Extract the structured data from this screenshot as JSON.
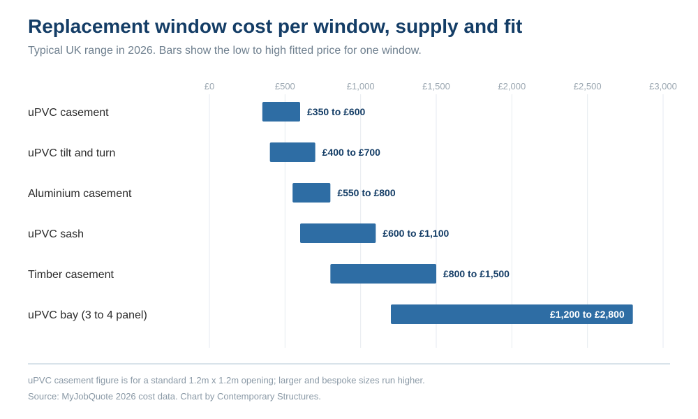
{
  "header": {
    "title": "Replacement window cost per window, supply and fit",
    "subtitle": "Typical UK range in 2026. Bars show the low to high fitted price for one window."
  },
  "footer": {
    "note": "uPVC casement figure is for a standard 1.2m x 1.2m opening; larger and bespoke sizes run higher.",
    "source": "Source: MyJobQuote 2026 cost data. Chart by Contemporary Structures."
  },
  "colors": {
    "bar": "#2e6da4",
    "range_label": "#143d66",
    "range_label_inside": "#ffffff",
    "category_label": "#2b2b2b",
    "tick_label": "#9aa6b0",
    "grid": "#e6eaf0"
  },
  "chart_data": {
    "type": "bar",
    "orientation": "horizontal-range",
    "xlim": [
      0,
      3000
    ],
    "ticks": [
      0,
      500,
      1000,
      1500,
      2000,
      2500,
      3000
    ],
    "tick_labels": [
      "£0",
      "£500",
      "£1,000",
      "£1,500",
      "£2,000",
      "£2,500",
      "£3,000"
    ],
    "tick_position": "top",
    "grid": true,
    "categories": [
      "uPVC casement",
      "uPVC tilt and turn",
      "Aluminium casement",
      "uPVC sash",
      "Timber casement",
      "uPVC bay (3 to 4 panel)"
    ],
    "low": [
      350,
      400,
      550,
      600,
      800,
      1200
    ],
    "high": [
      600,
      700,
      800,
      1100,
      1500,
      2800
    ],
    "labels": [
      "£350 to £600",
      "£400 to £700",
      "£550 to £800",
      "£600 to £1,100",
      "£800 to £1,500",
      "£1,200 to £2,800"
    ]
  }
}
